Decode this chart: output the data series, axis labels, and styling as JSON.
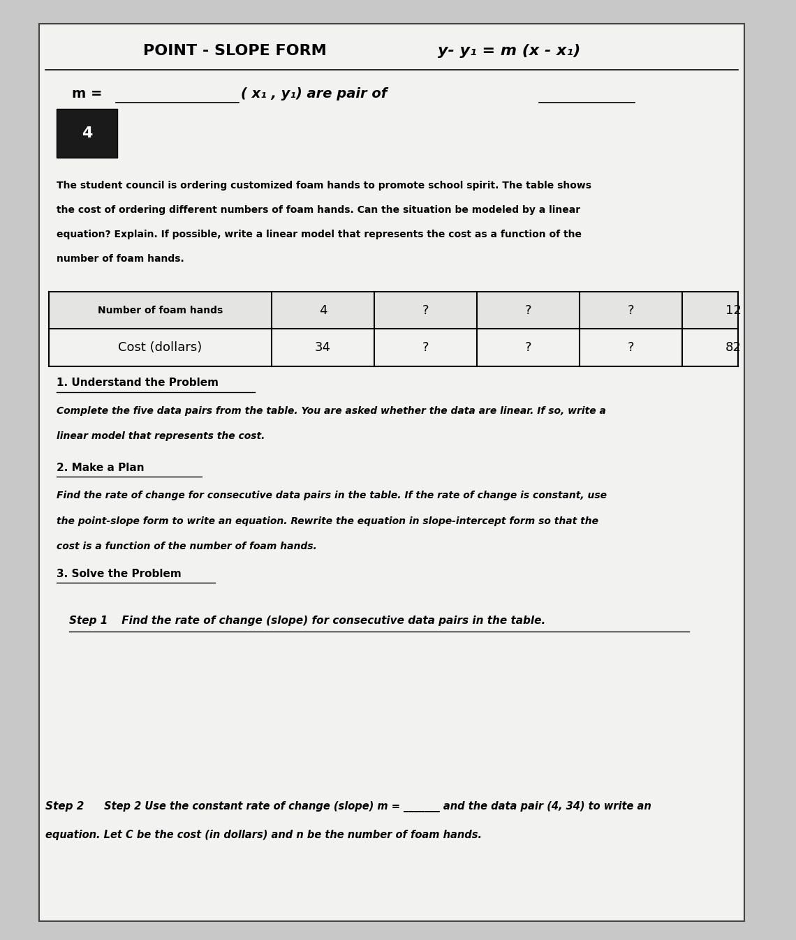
{
  "bg_color": "#c8c8c8",
  "paper_color": "#f2f2f0",
  "title_line1": "POINT - SLOPE FORM",
  "title_formula": "y- y₁ = m (x - x₁)",
  "m_label": "m =",
  "point_label": "( x₁ , y₁) are pair of",
  "para_lines": [
    "The student council is ordering customized foam hands to promote school spirit. The table shows",
    "the cost of ordering different numbers of foam hands. Can the situation be modeled by a linear",
    "equation? Explain. If possible, write a linear model that represents the cost as a function of the",
    "number of foam hands."
  ],
  "table_headers": [
    "Number of foam hands",
    "4",
    "?",
    "?",
    "?",
    "12"
  ],
  "table_row2": [
    "Cost (dollars)",
    "34",
    "?",
    "?",
    "?",
    "82"
  ],
  "section1_title": "1. Understand the Problem",
  "section1_body": [
    "Complete the five data pairs from the table. You are asked whether the data are linear. If so, write a",
    "linear model that represents the cost."
  ],
  "section2_title": "2. Make a Plan",
  "section2_body": [
    "Find the rate of change for consecutive data pairs in the table. If the rate of change is constant, use",
    "the point-slope form to write an equation. Rewrite the equation in slope-intercept form so that the",
    "cost is a function of the number of foam hands."
  ],
  "section3_title": "3. Solve the Problem",
  "step1_bold": "Step 1",
  "step1_text": " Find the rate of change (slope) for consecutive data pairs in the table.",
  "step2_bold": "Step 2",
  "step2_line1": " Step 2 Use the constant rate of change (slope) m = _______ and the data pair (4, 34) to write an",
  "step2_line2": "equation. Let C be the cost (in dollars) and n be the number of foam hands."
}
